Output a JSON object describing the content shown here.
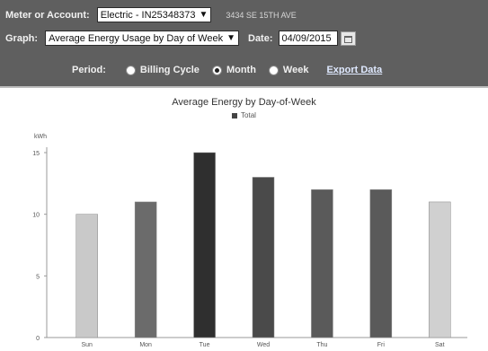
{
  "toolbar": {
    "meter_label": "Meter or Account:",
    "meter_value": "Electric - IN25348373",
    "address": "3434 SE 15TH AVE",
    "graph_label": "Graph:",
    "graph_value": "Average Energy Usage by Day of Week",
    "date_label": "Date:",
    "date_value": "04/09/2015",
    "period_label": "Period:",
    "period_options": [
      "Billing Cycle",
      "Month",
      "Week"
    ],
    "period_selected": "Month",
    "export_label": "Export Data"
  },
  "chart_data": {
    "type": "bar",
    "title": "Average Energy by Day-of-Week",
    "legend": [
      "Total"
    ],
    "ylabel": "kWh",
    "ylim": [
      0,
      15
    ],
    "yticks": [
      0,
      5,
      10,
      15
    ],
    "categories": [
      "Sun",
      "Mon",
      "Tue",
      "Wed",
      "Thu",
      "Fri",
      "Sat"
    ],
    "values": [
      10,
      11,
      15,
      13,
      12,
      12,
      11
    ],
    "colors": [
      "#c9c9c9",
      "#6b6b6b",
      "#2f2f2f",
      "#4a4a4a",
      "#5a5a5a",
      "#5a5a5a",
      "#d0d0d0"
    ],
    "grid": false
  }
}
